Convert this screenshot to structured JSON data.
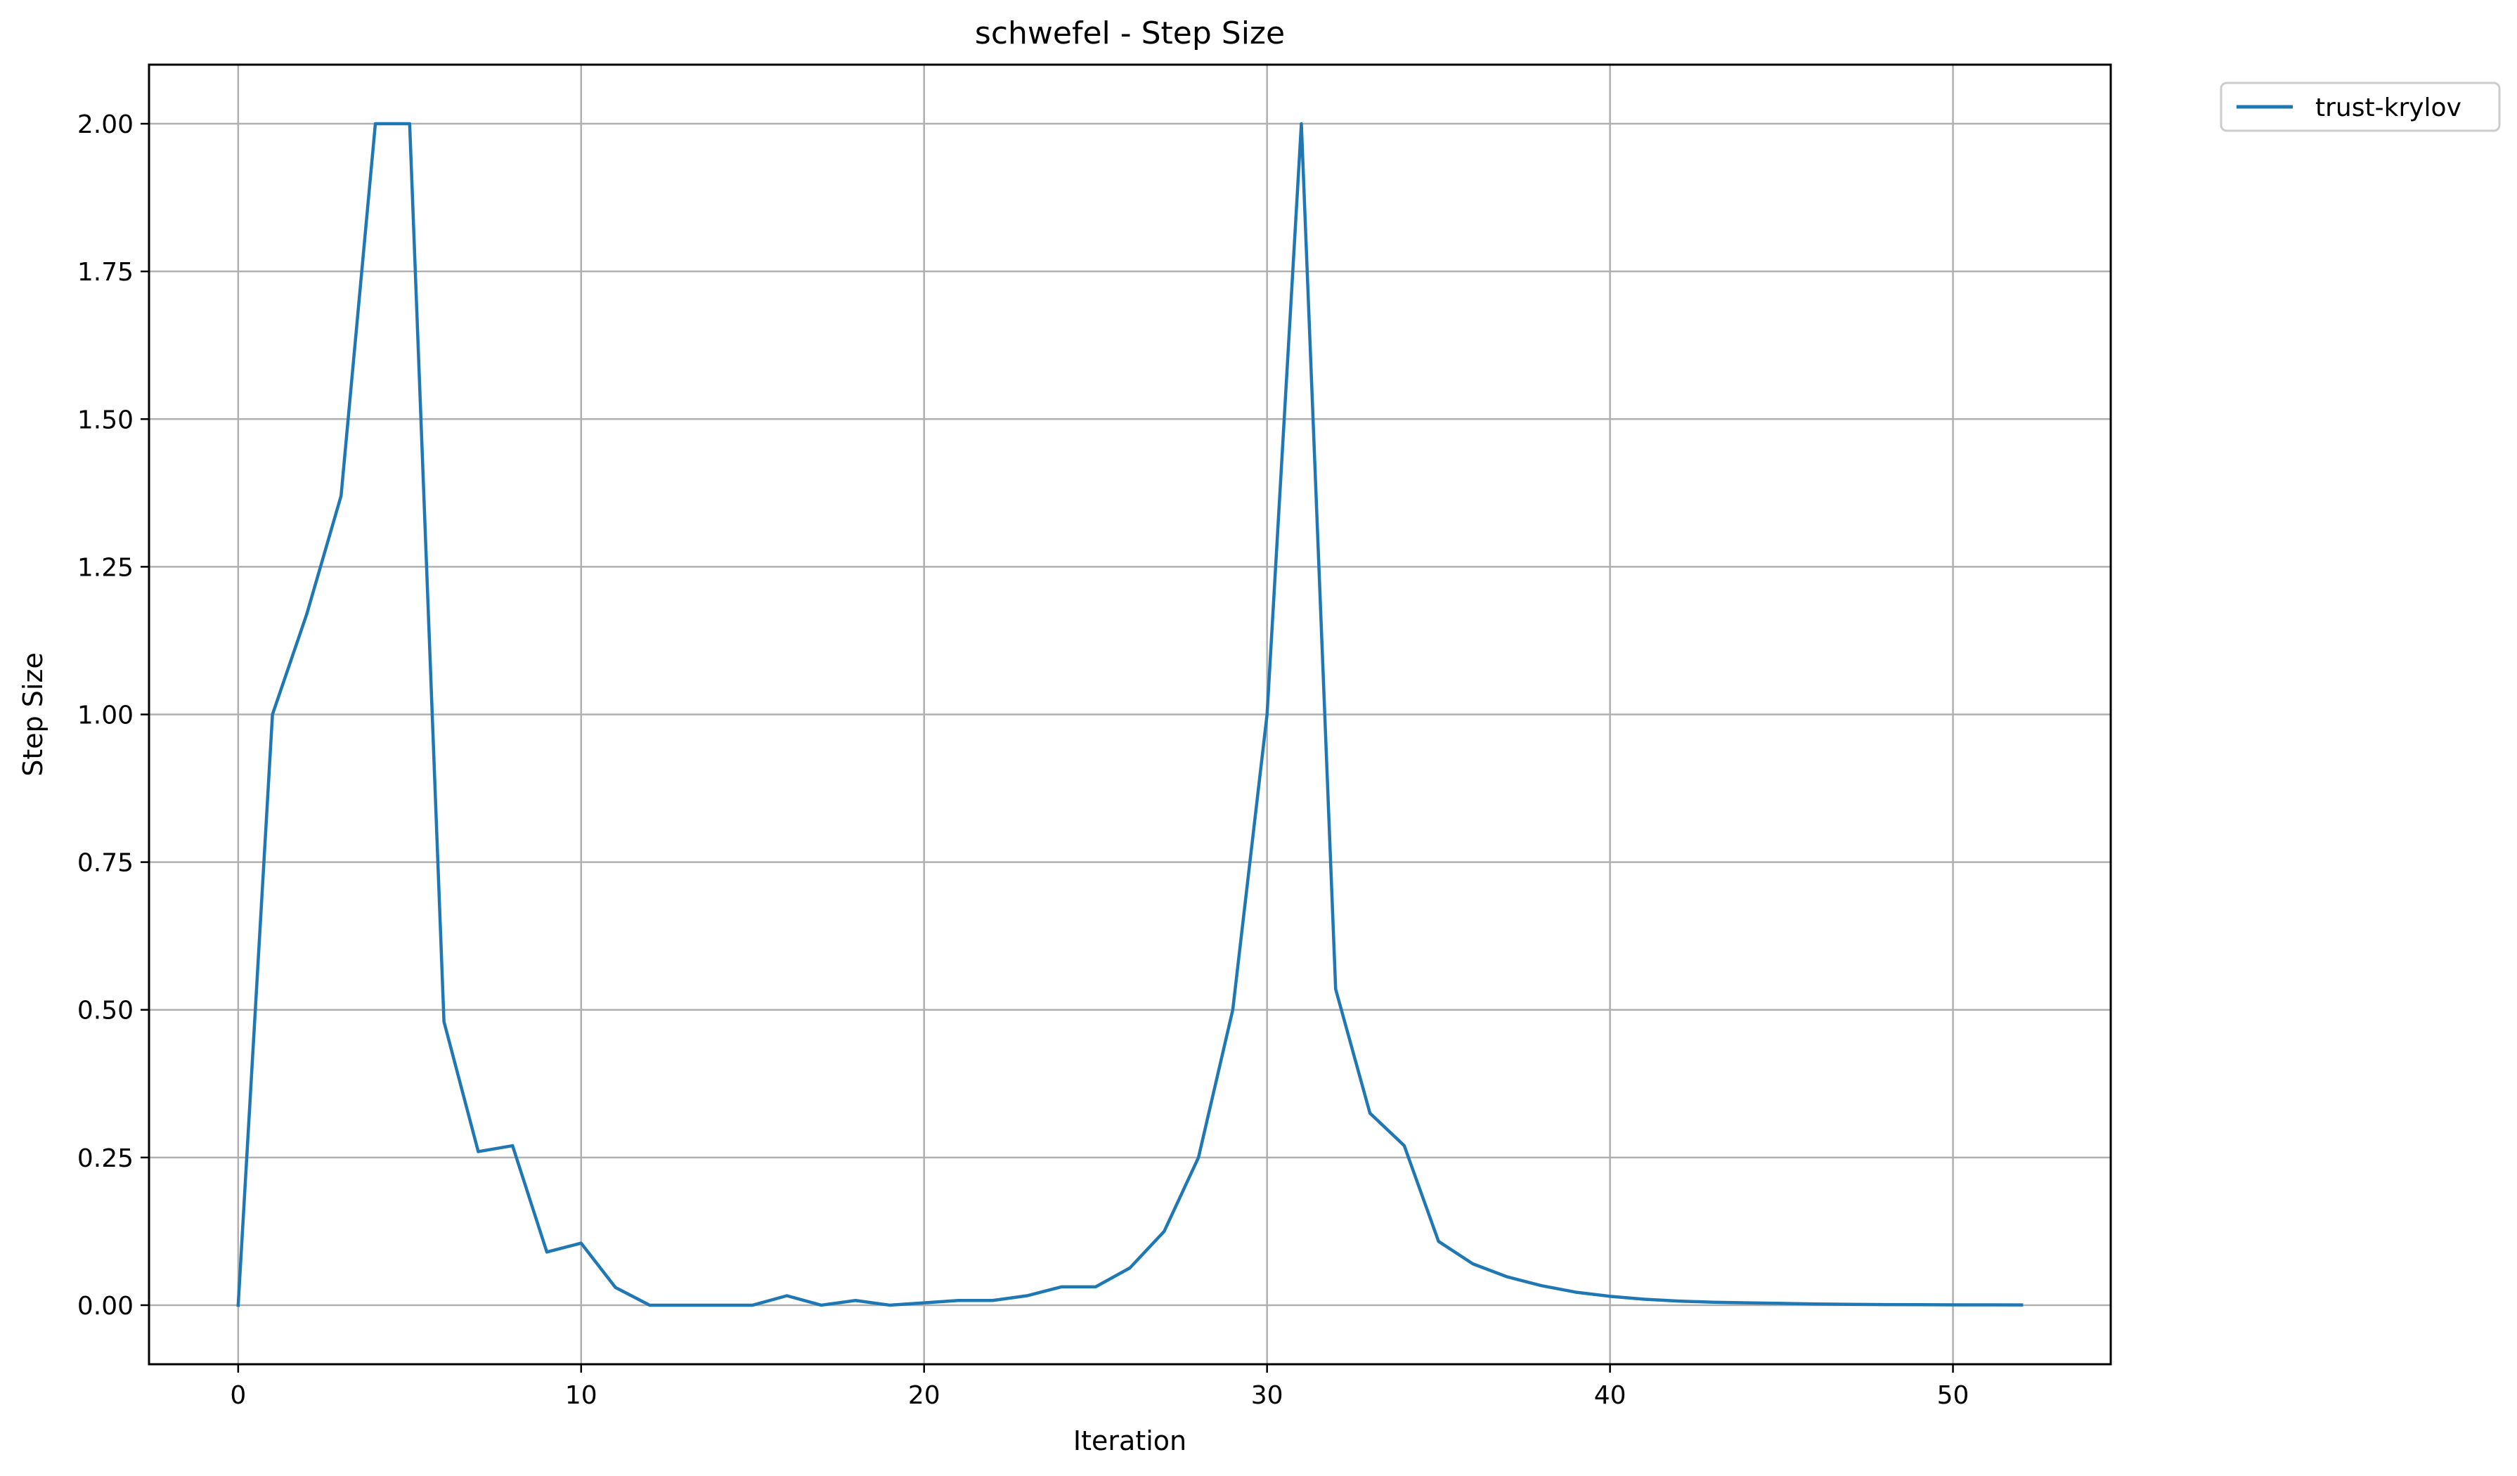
{
  "chart_data": {
    "type": "line",
    "title": "schwefel - Step Size",
    "xlabel": "Iteration",
    "ylabel": "Step Size",
    "xlim": [
      -2.6,
      54.6
    ],
    "ylim": [
      -0.1,
      2.1
    ],
    "xticks": [
      0,
      10,
      20,
      30,
      40,
      50
    ],
    "yticks": [
      0.0,
      0.25,
      0.5,
      0.75,
      1.0,
      1.25,
      1.5,
      1.75,
      2.0
    ],
    "ytick_labels": [
      "0.00",
      "0.25",
      "0.50",
      "0.75",
      "1.00",
      "1.25",
      "1.50",
      "1.75",
      "2.00"
    ],
    "grid": true,
    "legend_position": "outside-top-right",
    "x": [
      0,
      1,
      2,
      3,
      4,
      5,
      6,
      7,
      8,
      9,
      10,
      11,
      12,
      13,
      14,
      15,
      16,
      17,
      18,
      19,
      20,
      21,
      22,
      23,
      24,
      25,
      26,
      27,
      28,
      29,
      30,
      31,
      32,
      33,
      34,
      35,
      36,
      37,
      38,
      39,
      40,
      41,
      42,
      43,
      44,
      45,
      46,
      47,
      48,
      49,
      50,
      51,
      52
    ],
    "series": [
      {
        "name": "trust-krylov",
        "color": "#1f77b4",
        "values": [
          0.0,
          1.0,
          1.17,
          1.37,
          2.0,
          2.0,
          0.48,
          0.26,
          0.27,
          0.09,
          0.105,
          0.03,
          0.0,
          0.0,
          0.0,
          0.0,
          0.016,
          0.0,
          0.008,
          0.0,
          0.004,
          0.008,
          0.008,
          0.016,
          0.031,
          0.031,
          0.063,
          0.125,
          0.25,
          0.5,
          1.0,
          2.0,
          0.535,
          0.325,
          0.27,
          0.108,
          0.07,
          0.048,
          0.033,
          0.022,
          0.015,
          0.01,
          0.007,
          0.005,
          0.004,
          0.003,
          0.002,
          0.0015,
          0.001,
          0.0008,
          0.0006,
          0.0005,
          0.0004
        ]
      }
    ]
  }
}
